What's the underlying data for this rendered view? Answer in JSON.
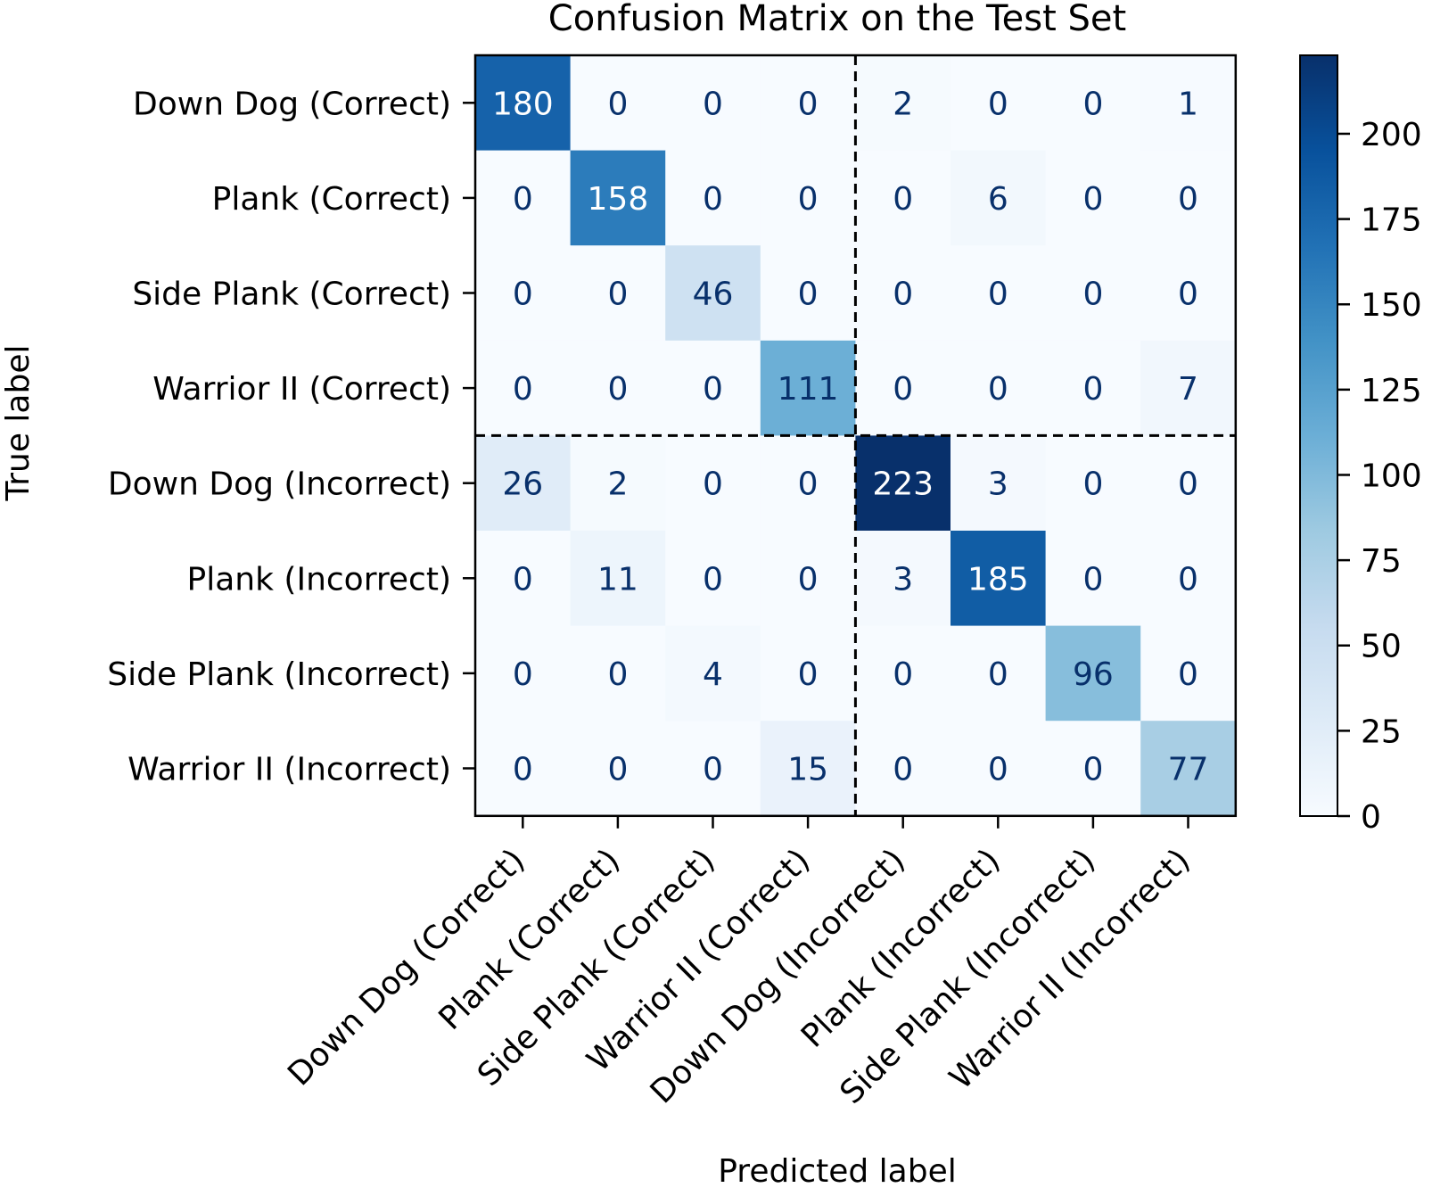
{
  "chart_data": {
    "type": "heatmap",
    "title": "Confusion Matrix on the Test Set",
    "xlabel": "Predicted label",
    "ylabel": "True label",
    "labels": [
      "Down Dog (Correct)",
      "Plank (Correct)",
      "Side Plank (Correct)",
      "Warrior II (Correct)",
      "Down Dog (Incorrect)",
      "Plank (Incorrect)",
      "Side Plank (Incorrect)",
      "Warrior II (Incorrect)"
    ],
    "matrix": [
      [
        180,
        0,
        0,
        0,
        2,
        0,
        0,
        1
      ],
      [
        0,
        158,
        0,
        0,
        0,
        6,
        0,
        0
      ],
      [
        0,
        0,
        46,
        0,
        0,
        0,
        0,
        0
      ],
      [
        0,
        0,
        0,
        111,
        0,
        0,
        0,
        7
      ],
      [
        26,
        2,
        0,
        0,
        223,
        3,
        0,
        0
      ],
      [
        0,
        11,
        0,
        0,
        3,
        185,
        0,
        0
      ],
      [
        0,
        0,
        4,
        0,
        0,
        0,
        96,
        0
      ],
      [
        0,
        0,
        0,
        15,
        0,
        0,
        0,
        77
      ]
    ],
    "colormap": "Blues",
    "value_range": [
      0,
      223
    ],
    "colorbar_ticks": [
      "0",
      "25",
      "50",
      "75",
      "100",
      "125",
      "150",
      "175",
      "200"
    ],
    "divider_after_index": 3,
    "text_color_light": "#ffffff",
    "text_color_dark": "#08306b"
  }
}
